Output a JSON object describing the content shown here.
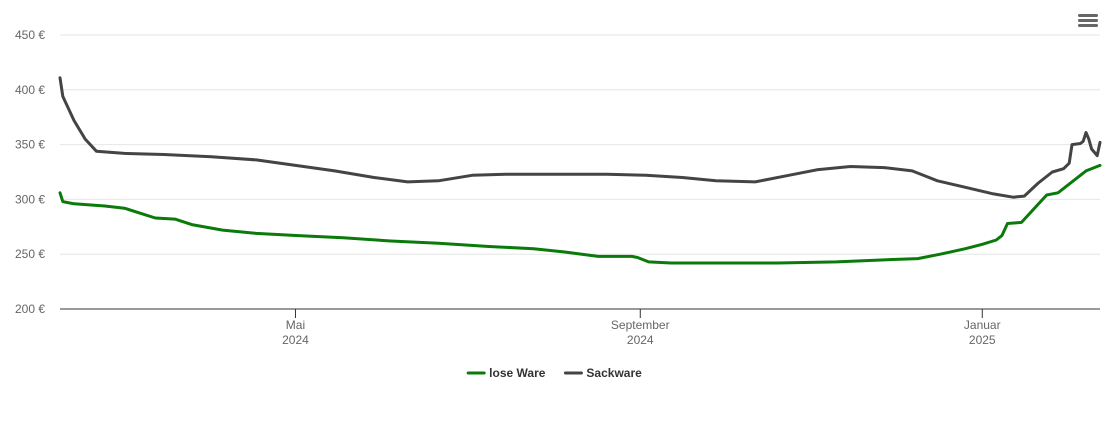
{
  "chart_data": {
    "type": "line",
    "title": "",
    "xlabel": "",
    "ylabel": "",
    "ylim": [
      200,
      450
    ],
    "y_ticks": [
      200,
      250,
      300,
      350,
      400,
      450
    ],
    "y_tick_format": "{v} €",
    "xlim": [
      "2024-02-07",
      "2025-02-12"
    ],
    "x_ticks": [
      {
        "date": "2024-05-01",
        "line1": "Mai",
        "line2": "2024"
      },
      {
        "date": "2024-09-01",
        "line1": "September",
        "line2": "2024"
      },
      {
        "date": "2025-01-01",
        "line1": "Januar",
        "line2": "2025"
      }
    ],
    "grid": true,
    "legend_position": "bottom-center",
    "series": [
      {
        "name": "lose Ware",
        "color": "#0a7a0a",
        "points": [
          [
            "2024-02-07",
            306
          ],
          [
            "2024-02-08",
            298
          ],
          [
            "2024-02-12",
            296
          ],
          [
            "2024-02-23",
            294
          ],
          [
            "2024-03-01",
            292
          ],
          [
            "2024-03-07",
            287
          ],
          [
            "2024-03-12",
            283
          ],
          [
            "2024-03-19",
            282
          ],
          [
            "2024-03-25",
            277
          ],
          [
            "2024-04-05",
            272
          ],
          [
            "2024-04-17",
            269
          ],
          [
            "2024-05-02",
            267
          ],
          [
            "2024-05-18",
            265
          ],
          [
            "2024-06-04",
            262
          ],
          [
            "2024-06-21",
            260
          ],
          [
            "2024-07-09",
            257
          ],
          [
            "2024-07-25",
            255
          ],
          [
            "2024-08-05",
            252
          ],
          [
            "2024-08-17",
            248
          ],
          [
            "2024-08-29",
            248
          ],
          [
            "2024-08-31",
            247
          ],
          [
            "2024-09-04",
            243
          ],
          [
            "2024-09-12",
            242
          ],
          [
            "2024-10-01",
            242
          ],
          [
            "2024-10-20",
            242
          ],
          [
            "2024-11-10",
            243
          ],
          [
            "2024-11-28",
            245
          ],
          [
            "2024-12-09",
            246
          ],
          [
            "2024-12-17",
            250
          ],
          [
            "2024-12-26",
            255
          ],
          [
            "2025-01-01",
            259
          ],
          [
            "2025-01-06",
            263
          ],
          [
            "2025-01-08",
            267
          ],
          [
            "2025-01-10",
            278
          ],
          [
            "2025-01-15",
            279
          ],
          [
            "2025-01-20",
            293
          ],
          [
            "2025-01-24",
            304
          ],
          [
            "2025-01-28",
            306
          ],
          [
            "2025-02-01",
            314
          ],
          [
            "2025-02-07",
            326
          ],
          [
            "2025-02-12",
            331
          ]
        ]
      },
      {
        "name": "Sackware",
        "color": "#444444",
        "points": [
          [
            "2024-02-07",
            411
          ],
          [
            "2024-02-08",
            394
          ],
          [
            "2024-02-12",
            372
          ],
          [
            "2024-02-16",
            355
          ],
          [
            "2024-02-20",
            344
          ],
          [
            "2024-03-01",
            342
          ],
          [
            "2024-03-15",
            341
          ],
          [
            "2024-04-01",
            339
          ],
          [
            "2024-04-17",
            336
          ],
          [
            "2024-05-01",
            331
          ],
          [
            "2024-05-15",
            326
          ],
          [
            "2024-05-29",
            320
          ],
          [
            "2024-06-10",
            316
          ],
          [
            "2024-06-21",
            317
          ],
          [
            "2024-07-03",
            322
          ],
          [
            "2024-07-15",
            323
          ],
          [
            "2024-08-01",
            323
          ],
          [
            "2024-08-20",
            323
          ],
          [
            "2024-09-03",
            322
          ],
          [
            "2024-09-16",
            320
          ],
          [
            "2024-09-28",
            317
          ],
          [
            "2024-10-12",
            316
          ],
          [
            "2024-10-24",
            322
          ],
          [
            "2024-11-03",
            327
          ],
          [
            "2024-11-15",
            330
          ],
          [
            "2024-11-27",
            329
          ],
          [
            "2024-12-07",
            326
          ],
          [
            "2024-12-12",
            321
          ],
          [
            "2024-12-16",
            317
          ],
          [
            "2024-12-26",
            311
          ],
          [
            "2025-01-05",
            305
          ],
          [
            "2025-01-12",
            302
          ],
          [
            "2025-01-16",
            303
          ],
          [
            "2025-01-21",
            315
          ],
          [
            "2025-01-26",
            325
          ],
          [
            "2025-01-30",
            328
          ],
          [
            "2025-02-01",
            333
          ],
          [
            "2025-02-02",
            350
          ],
          [
            "2025-02-05",
            351
          ],
          [
            "2025-02-06",
            353
          ],
          [
            "2025-02-07",
            361
          ],
          [
            "2025-02-08",
            355
          ],
          [
            "2025-02-09",
            346
          ],
          [
            "2025-02-11",
            340
          ],
          [
            "2025-02-12",
            352
          ]
        ]
      }
    ]
  },
  "menu_icon": "hamburger-menu-icon"
}
